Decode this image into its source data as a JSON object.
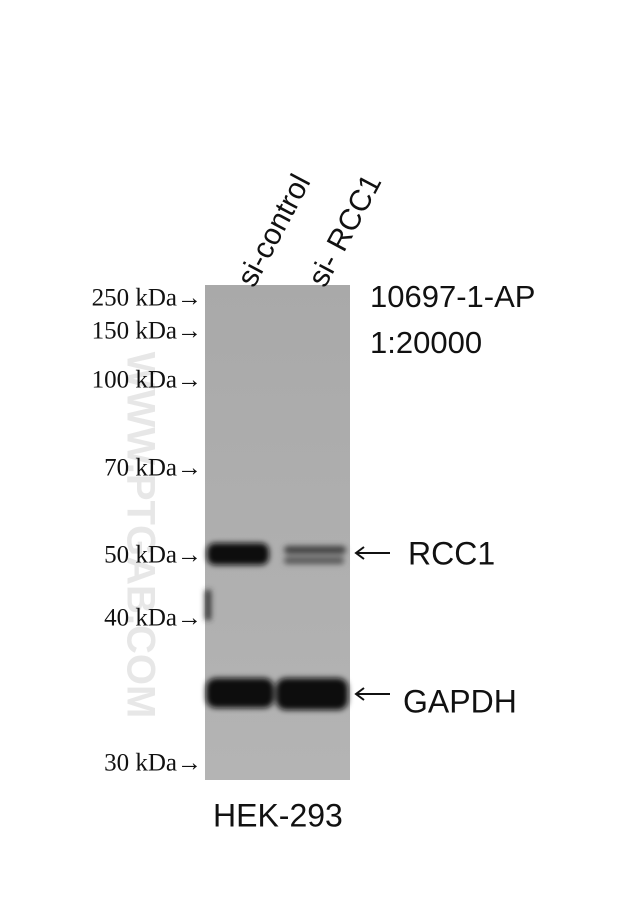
{
  "lanes": [
    "si-control",
    "si- RCC1"
  ],
  "markers": [
    "250 kDa→",
    "150 kDa→",
    "100 kDa→",
    "70 kDa→",
    "50 kDa→",
    "40 kDa→",
    "30 kDa→"
  ],
  "antibody": {
    "catalog": "10697-1-AP",
    "dilution": "1:20000"
  },
  "bands": [
    "RCC1",
    "GAPDH"
  ],
  "cell_line": "HEK-293",
  "watermark": "WWW.PTGAB.COM"
}
